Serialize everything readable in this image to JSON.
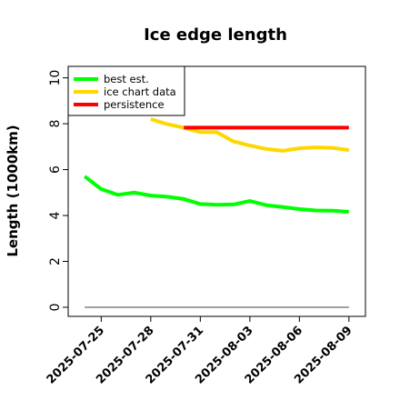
{
  "chart_data": {
    "type": "line",
    "title": "Ice edge length",
    "xlabel": "",
    "ylabel": "Length (1000km)",
    "ylim": [
      0,
      10.5
    ],
    "xlim": [
      "2025-07-23",
      "2025-08-10"
    ],
    "y_ticks": [
      0,
      2,
      4,
      6,
      8,
      10
    ],
    "x_ticks": [
      "2025-07-25",
      "2025-07-28",
      "2025-07-31",
      "2025-08-03",
      "2025-08-06",
      "2025-08-09"
    ],
    "grid": false,
    "legend_position": "top-left",
    "baseline": {
      "y": 0,
      "x_from": "2025-07-24",
      "x_to": "2025-08-09",
      "color": "#808080"
    },
    "series": [
      {
        "name": "best est.",
        "color": "#00ff00",
        "x": [
          "2025-07-24",
          "2025-07-25",
          "2025-07-26",
          "2025-07-27",
          "2025-07-28",
          "2025-07-29",
          "2025-07-30",
          "2025-07-31",
          "2025-08-01",
          "2025-08-02",
          "2025-08-03",
          "2025-08-04",
          "2025-08-05",
          "2025-08-06",
          "2025-08-07",
          "2025-08-08",
          "2025-08-09"
        ],
        "y": [
          5.7,
          5.15,
          4.9,
          5.0,
          4.87,
          4.82,
          4.72,
          4.5,
          4.47,
          4.48,
          4.63,
          4.45,
          4.37,
          4.28,
          4.22,
          4.21,
          4.16
        ]
      },
      {
        "name": "ice chart data",
        "color": "#ffd700",
        "x": [
          "2025-07-28",
          "2025-07-29",
          "2025-07-30",
          "2025-07-31",
          "2025-08-01",
          "2025-08-02",
          "2025-08-03",
          "2025-08-04",
          "2025-08-05",
          "2025-08-06",
          "2025-08-07",
          "2025-08-08",
          "2025-08-09"
        ],
        "y": [
          8.2,
          7.98,
          7.83,
          7.63,
          7.63,
          7.23,
          7.05,
          6.9,
          6.82,
          6.93,
          6.97,
          6.95,
          6.85
        ]
      },
      {
        "name": "persistence",
        "color": "#ff0000",
        "x": [
          "2025-07-30",
          "2025-08-09"
        ],
        "y": [
          7.83,
          7.83
        ]
      }
    ]
  }
}
